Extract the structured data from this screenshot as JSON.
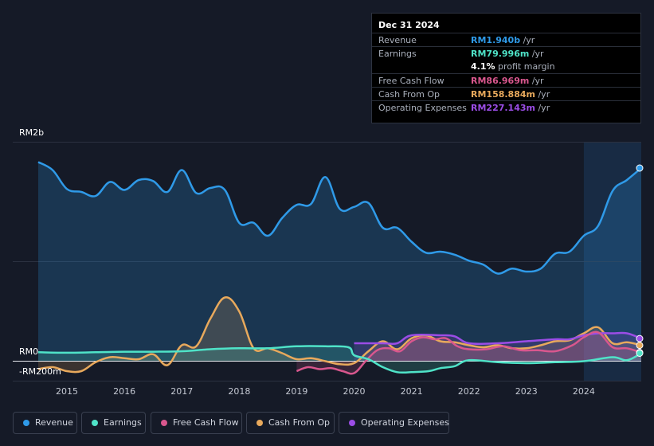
{
  "tooltip": {
    "date": "Dec 31 2024",
    "rows": [
      {
        "label": "Revenue",
        "value": "RM1.940b",
        "unit": " /yr",
        "color": "#2f9ae8"
      },
      {
        "label": "Earnings",
        "value": "RM79.996m",
        "unit": " /yr",
        "color": "#4fe3c8"
      },
      {
        "label": "",
        "value": "4.1%",
        "unit": " profit margin",
        "color": "#ffffff"
      },
      {
        "label": "Free Cash Flow",
        "value": "RM86.969m",
        "unit": " /yr",
        "color": "#d9578e"
      },
      {
        "label": "Cash From Op",
        "value": "RM158.884m",
        "unit": " /yr",
        "color": "#e8a95c"
      },
      {
        "label": "Operating Expenses",
        "value": "RM227.143m",
        "unit": " /yr",
        "color": "#9b4de6"
      }
    ]
  },
  "axis": {
    "top": "RM2b",
    "zero": "RM0",
    "bottom": "-RM200m"
  },
  "legend": [
    {
      "label": "Revenue",
      "color": "#2f9ae8"
    },
    {
      "label": "Earnings",
      "color": "#4fe3c8"
    },
    {
      "label": "Free Cash Flow",
      "color": "#d9578e"
    },
    {
      "label": "Cash From Op",
      "color": "#e8a95c"
    },
    {
      "label": "Operating Expenses",
      "color": "#9b4de6"
    }
  ],
  "chart_data": {
    "type": "line",
    "title": "",
    "xlabel": "",
    "ylabel": "",
    "ylim": [
      -200,
      2200
    ],
    "xlim": [
      2014.5,
      2025.0
    ],
    "x_ticks": [
      2015,
      2016,
      2017,
      2018,
      2019,
      2020,
      2021,
      2022,
      2023,
      2024
    ],
    "x_tick_labels": [
      "2015",
      "2016",
      "2017",
      "2018",
      "2019",
      "2020",
      "2021",
      "2022",
      "2023",
      "2024"
    ],
    "highlight_from": 2024.0,
    "series": [
      {
        "name": "Revenue",
        "color": "#2f9ae8",
        "x": [
          2014.5,
          2014.75,
          2015.0,
          2015.25,
          2015.5,
          2015.75,
          2016.0,
          2016.25,
          2016.5,
          2016.75,
          2017.0,
          2017.25,
          2017.5,
          2017.75,
          2018.0,
          2018.25,
          2018.5,
          2018.75,
          2019.0,
          2019.25,
          2019.5,
          2019.75,
          2020.0,
          2020.25,
          2020.5,
          2020.75,
          2021.0,
          2021.25,
          2021.5,
          2021.75,
          2022.0,
          2022.25,
          2022.5,
          2022.75,
          2023.0,
          2023.25,
          2023.5,
          2023.75,
          2024.0,
          2024.25,
          2024.5,
          2024.75,
          2025.0
        ],
        "values": [
          2000,
          1920,
          1730,
          1700,
          1660,
          1800,
          1720,
          1820,
          1810,
          1700,
          1920,
          1690,
          1740,
          1720,
          1390,
          1390,
          1260,
          1440,
          1570,
          1580,
          1850,
          1530,
          1550,
          1590,
          1340,
          1340,
          1200,
          1090,
          1100,
          1070,
          1010,
          970,
          880,
          930,
          900,
          930,
          1080,
          1100,
          1260,
          1360,
          1710,
          1820,
          1940
        ]
      },
      {
        "name": "Earnings",
        "color": "#4fe3c8",
        "x": [
          2014.5,
          2015.0,
          2015.5,
          2016.0,
          2016.5,
          2017.0,
          2017.5,
          2018.0,
          2018.5,
          2019.0,
          2019.5,
          2019.9,
          2020.0,
          2020.25,
          2020.5,
          2020.75,
          2021.0,
          2021.3,
          2021.5,
          2021.75,
          2022.0,
          2022.5,
          2023.0,
          2023.5,
          2024.0,
          2024.5,
          2024.75,
          2025.0
        ],
        "values": [
          90,
          85,
          90,
          95,
          95,
          100,
          120,
          130,
          130,
          150,
          150,
          140,
          60,
          20,
          -60,
          -110,
          -110,
          -100,
          -70,
          -50,
          10,
          -10,
          -20,
          -10,
          0,
          40,
          10,
          80
        ]
      },
      {
        "name": "Free Cash Flow",
        "color": "#d9578e",
        "x": [
          2019.0,
          2019.2,
          2019.4,
          2019.6,
          2019.8,
          2020.0,
          2020.2,
          2020.4,
          2020.6,
          2020.8,
          2021.0,
          2021.2,
          2021.4,
          2021.6,
          2021.8,
          2022.0,
          2022.3,
          2022.6,
          2022.9,
          2023.2,
          2023.5,
          2023.8,
          2024.0,
          2024.25,
          2024.5,
          2024.75,
          2025.0
        ],
        "values": [
          -100,
          -60,
          -80,
          -70,
          -100,
          -120,
          0,
          110,
          130,
          100,
          200,
          240,
          220,
          230,
          150,
          120,
          120,
          150,
          110,
          110,
          100,
          160,
          240,
          290,
          140,
          130,
          87
        ]
      },
      {
        "name": "Cash From Op",
        "color": "#e8a95c",
        "x": [
          2014.5,
          2014.75,
          2015.0,
          2015.25,
          2015.5,
          2015.75,
          2016.0,
          2016.25,
          2016.5,
          2016.75,
          2017.0,
          2017.25,
          2017.5,
          2017.75,
          2018.0,
          2018.25,
          2018.5,
          2018.75,
          2019.0,
          2019.25,
          2019.5,
          2019.75,
          2020.0,
          2020.25,
          2020.5,
          2020.75,
          2021.0,
          2021.25,
          2021.5,
          2021.75,
          2022.0,
          2022.25,
          2022.5,
          2022.75,
          2023.0,
          2023.25,
          2023.5,
          2023.75,
          2024.0,
          2024.25,
          2024.5,
          2024.75,
          2025.0
        ],
        "values": [
          -80,
          -60,
          -100,
          -100,
          -10,
          40,
          30,
          20,
          70,
          -40,
          160,
          150,
          430,
          640,
          500,
          130,
          130,
          80,
          20,
          30,
          0,
          -30,
          -20,
          100,
          200,
          120,
          230,
          260,
          200,
          190,
          160,
          140,
          160,
          130,
          130,
          160,
          200,
          210,
          280,
          340,
          180,
          190,
          159
        ]
      },
      {
        "name": "Operating Expenses",
        "color": "#9b4de6",
        "x": [
          2020.0,
          2020.5,
          2020.75,
          2021.0,
          2021.5,
          2021.75,
          2022.0,
          2022.5,
          2023.0,
          2023.5,
          2023.75,
          2024.0,
          2024.25,
          2024.5,
          2024.75,
          2025.0
        ],
        "values": [
          180,
          180,
          180,
          260,
          260,
          250,
          180,
          180,
          200,
          220,
          220,
          260,
          280,
          280,
          280,
          227
        ]
      }
    ]
  }
}
